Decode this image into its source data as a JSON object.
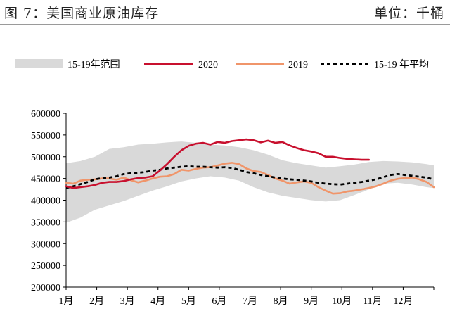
{
  "header": {
    "title": "图 7：美国商业原油库存",
    "unit": "单位：千桶"
  },
  "colors": {
    "range_band": "#d9d9d9",
    "series_2020": "#c8102e",
    "series_2019": "#f0956a",
    "series_avg": "#000000"
  },
  "chart_data": {
    "type": "line",
    "x_categories": [
      "1月",
      "2月",
      "3月",
      "4月",
      "5月",
      "6月",
      "7月",
      "8月",
      "9月",
      "10月",
      "11月",
      "12月"
    ],
    "x_domain": [
      1,
      52
    ],
    "ylim": [
      200000,
      600000
    ],
    "yticks": [
      "600000",
      "550000",
      "500000",
      "450000",
      "400000",
      "350000",
      "300000",
      "250000",
      "200000"
    ],
    "ytick_values": [
      600000,
      550000,
      500000,
      450000,
      400000,
      350000,
      300000,
      250000,
      200000
    ],
    "legend_position": "top",
    "band": {
      "name": "15-19年范围",
      "x": [
        1,
        3,
        5,
        7,
        9,
        11,
        13,
        15,
        17,
        19,
        21,
        23,
        25,
        27,
        29,
        31,
        33,
        35,
        37,
        39,
        41,
        43,
        45,
        47,
        49,
        51,
        52
      ],
      "low": [
        348000,
        360000,
        378000,
        388000,
        398000,
        410000,
        422000,
        432000,
        443000,
        450000,
        455000,
        452000,
        445000,
        430000,
        418000,
        410000,
        405000,
        400000,
        397000,
        400000,
        412000,
        425000,
        438000,
        440000,
        436000,
        430000,
        428000
      ],
      "high": [
        485000,
        490000,
        500000,
        518000,
        522000,
        528000,
        530000,
        533000,
        535000,
        532000,
        528000,
        526000,
        522000,
        515000,
        505000,
        492000,
        485000,
        480000,
        475000,
        478000,
        482000,
        488000,
        490000,
        489000,
        487000,
        483000,
        480000
      ]
    },
    "series": [
      {
        "name": "2020",
        "x": [
          1,
          2,
          3,
          4,
          5,
          6,
          7,
          8,
          9,
          10,
          11,
          12,
          13,
          14,
          15,
          16,
          17,
          18,
          19,
          20,
          21,
          22,
          23,
          24,
          25,
          26,
          27,
          28,
          29,
          30,
          31,
          32,
          33,
          34,
          35,
          36,
          37,
          38,
          39,
          40,
          41,
          42,
          43
        ],
        "values": [
          432000,
          428000,
          430000,
          432000,
          435000,
          440000,
          442000,
          442000,
          444000,
          448000,
          451000,
          452000,
          455000,
          468000,
          483000,
          500000,
          515000,
          525000,
          530000,
          532000,
          528000,
          534000,
          532000,
          536000,
          538000,
          540000,
          538000,
          533000,
          537000,
          532000,
          534000,
          526000,
          520000,
          515000,
          512000,
          508000,
          500000,
          500000,
          497000,
          495000,
          494000,
          493000,
          493000
        ]
      },
      {
        "name": "2019",
        "x": [
          1,
          2,
          3,
          4,
          5,
          6,
          7,
          8,
          9,
          10,
          11,
          12,
          13,
          14,
          15,
          16,
          17,
          18,
          19,
          20,
          21,
          22,
          23,
          24,
          25,
          26,
          27,
          28,
          29,
          30,
          31,
          32,
          33,
          34,
          35,
          36,
          37,
          38,
          39,
          40,
          41,
          42,
          43,
          44,
          45,
          46,
          47,
          48,
          49,
          50,
          51,
          52
        ],
        "values": [
          440000,
          438000,
          445000,
          447000,
          448000,
          450000,
          450000,
          447000,
          452000,
          446000,
          441000,
          445000,
          450000,
          454000,
          455000,
          460000,
          470000,
          468000,
          472000,
          475000,
          476000,
          480000,
          484000,
          486000,
          483000,
          473000,
          467000,
          465000,
          458000,
          450000,
          445000,
          438000,
          441000,
          443000,
          440000,
          430000,
          422000,
          415000,
          416000,
          420000,
          422000,
          425000,
          428000,
          432000,
          438000,
          445000,
          449000,
          451000,
          452000,
          448000,
          442000,
          430000
        ]
      },
      {
        "name": "15-19 年平均",
        "x": [
          1,
          2,
          3,
          4,
          5,
          6,
          7,
          8,
          9,
          10,
          11,
          12,
          13,
          14,
          15,
          16,
          17,
          18,
          19,
          20,
          21,
          22,
          23,
          24,
          25,
          26,
          27,
          28,
          29,
          30,
          31,
          32,
          33,
          34,
          35,
          36,
          37,
          38,
          39,
          40,
          41,
          42,
          43,
          44,
          45,
          46,
          47,
          48,
          49,
          50,
          51,
          52
        ],
        "values": [
          428000,
          432000,
          437000,
          442000,
          448000,
          451000,
          452000,
          455000,
          460000,
          462000,
          463000,
          465000,
          468000,
          470000,
          473000,
          475000,
          477000,
          478000,
          477000,
          477000,
          476000,
          475000,
          476000,
          474000,
          470000,
          465000,
          462000,
          458000,
          455000,
          452000,
          450000,
          448000,
          447000,
          445000,
          443000,
          440000,
          438000,
          437000,
          436000,
          438000,
          440000,
          442000,
          445000,
          448000,
          453000,
          458000,
          460000,
          458000,
          456000,
          454000,
          452000,
          448000
        ]
      }
    ]
  }
}
